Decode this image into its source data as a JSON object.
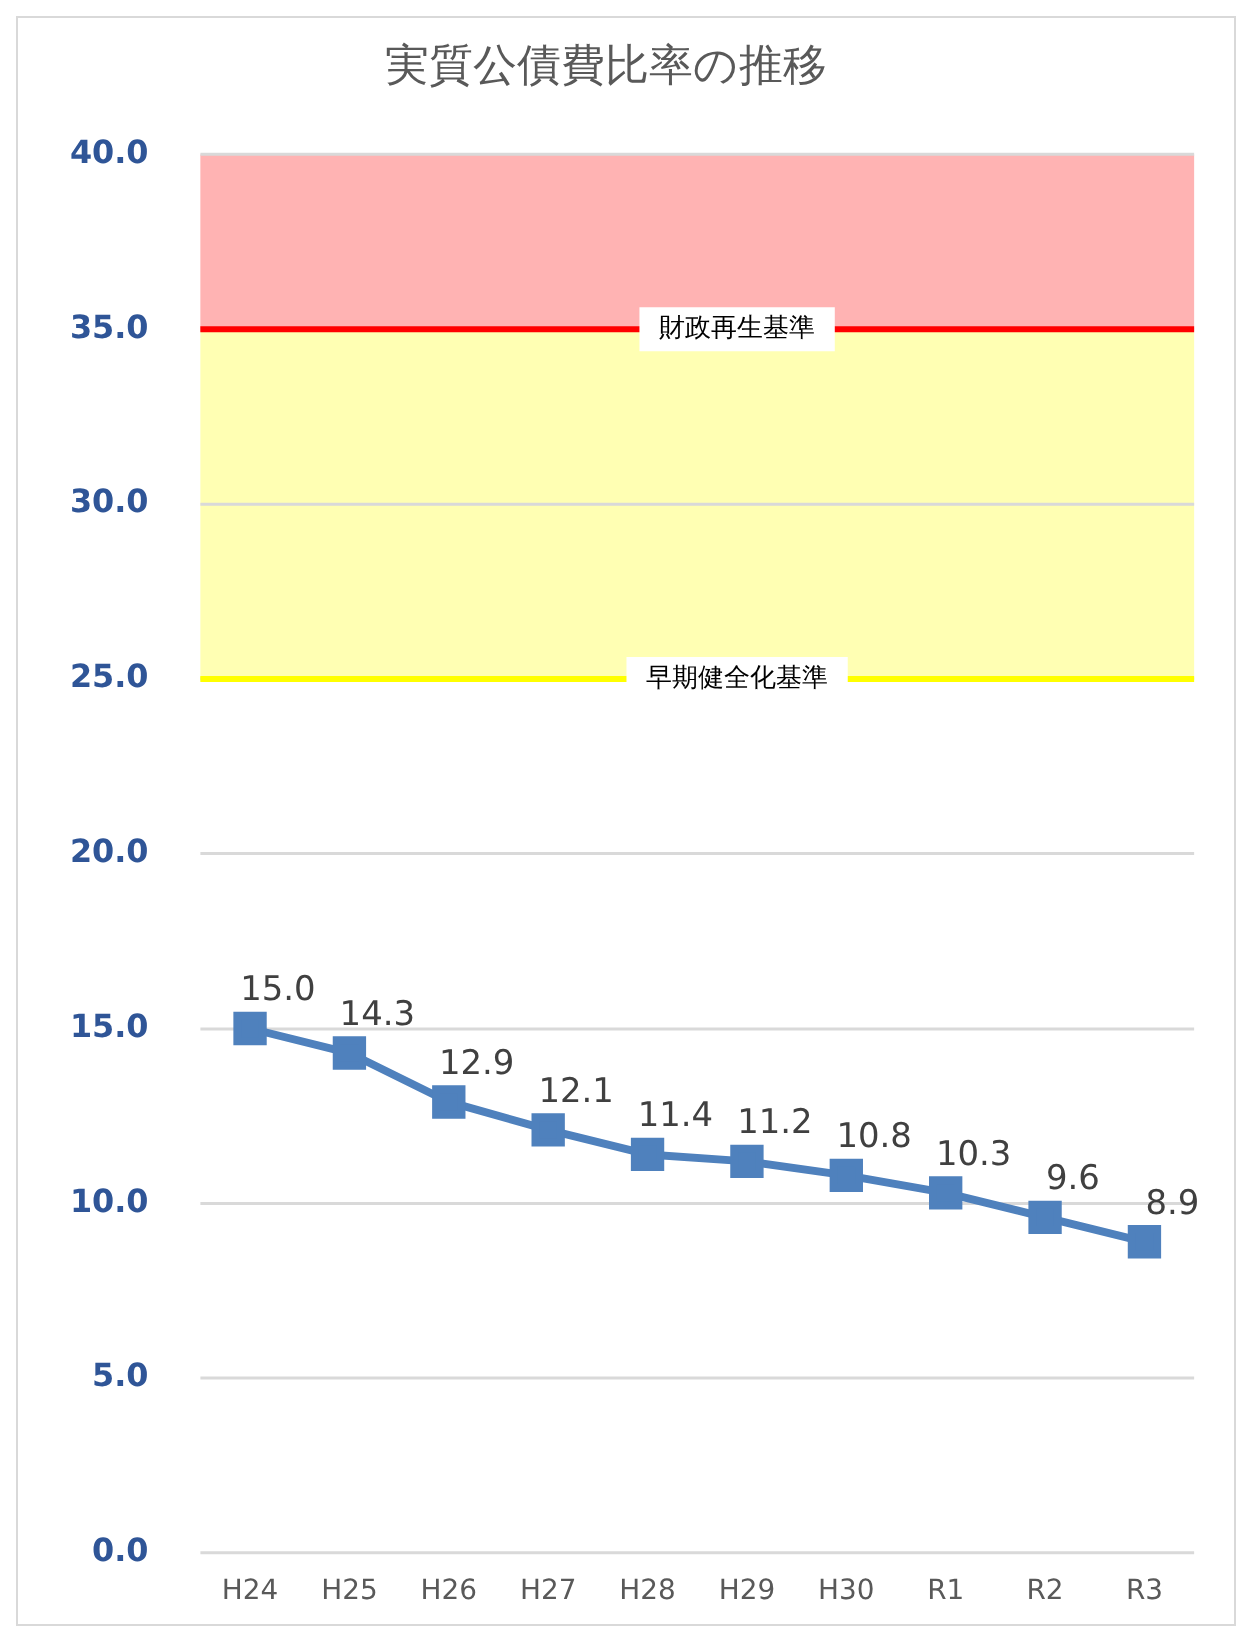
{
  "chart_data": {
    "type": "line",
    "title": "実質公債費比率の推移",
    "categories": [
      "H24",
      "H25",
      "H26",
      "H27",
      "H28",
      "H29",
      "H30",
      "R1",
      "R2",
      "R3"
    ],
    "series": [
      {
        "color": "#4f81bd",
        "values": [
          15.0,
          14.3,
          12.9,
          12.1,
          11.4,
          11.2,
          10.8,
          10.3,
          9.6,
          8.9
        ]
      }
    ],
    "value_labels": [
      "15.0",
      "14.3",
      "12.9",
      "12.1",
      "11.4",
      "11.2",
      "10.8",
      "10.3",
      "9.6",
      "8.9"
    ],
    "ylim": [
      0,
      40
    ],
    "yticks": [
      {
        "value": 0,
        "label": "0.0"
      },
      {
        "value": 5,
        "label": "5.0"
      },
      {
        "value": 10,
        "label": "10.0"
      },
      {
        "value": 15,
        "label": "15.0"
      },
      {
        "value": 20,
        "label": "20.0"
      },
      {
        "value": 25,
        "label": "25.0"
      },
      {
        "value": 30,
        "label": "30.0"
      },
      {
        "value": 35,
        "label": "35.0"
      },
      {
        "value": 40,
        "label": "40.0"
      }
    ],
    "bands": [
      {
        "axis": "y",
        "from": 35,
        "to": 40,
        "color": "#ffb3b3"
      },
      {
        "axis": "y",
        "from": 25,
        "to": 35,
        "color": "#ffffb3"
      }
    ],
    "ref_lines": [
      {
        "axis": "y",
        "value": 35,
        "label": "財政再生基準",
        "color": "#ff0000"
      },
      {
        "axis": "y",
        "value": 25,
        "label": "早期健全化基準",
        "color": "#ffff00"
      }
    ],
    "grid": "y",
    "legend": false,
    "marker": "square",
    "line_style": "solid"
  }
}
